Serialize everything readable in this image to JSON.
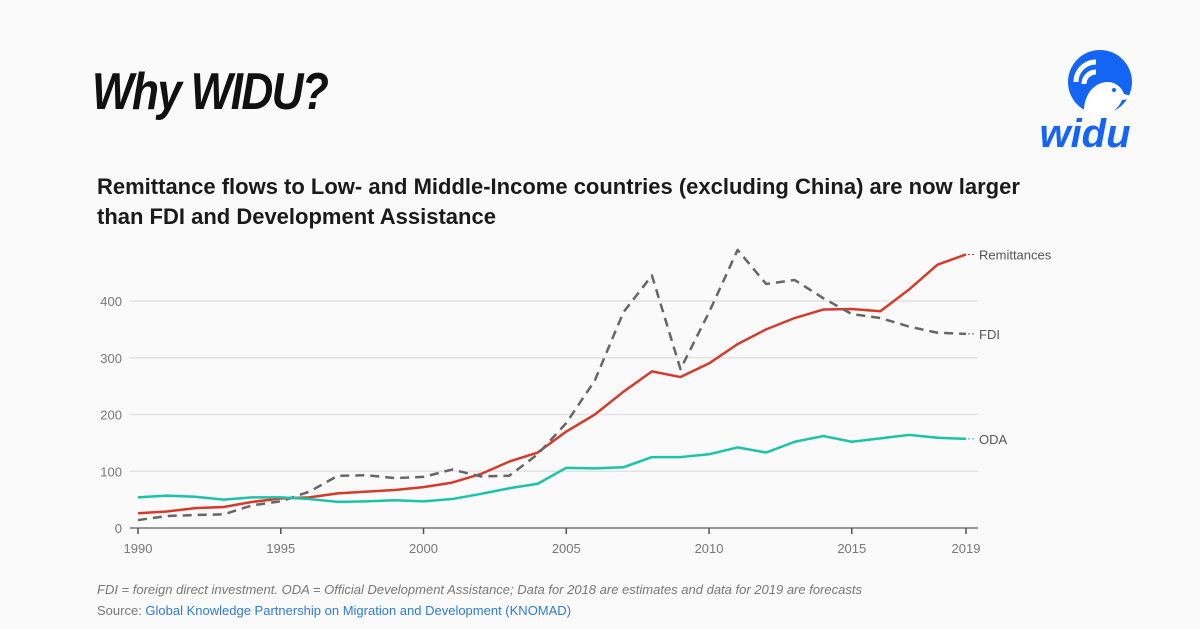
{
  "slide": {
    "title": "Why WIDU?",
    "logo_text": "widu"
  },
  "chart_data": {
    "type": "line",
    "title": "Remittance flows to Low- and Middle-Income countries (excluding China) are now larger than FDI and Development Assistance",
    "xlabel": "",
    "ylabel": "",
    "x": [
      1990,
      1991,
      1992,
      1993,
      1994,
      1995,
      1996,
      1997,
      1998,
      1999,
      2000,
      2001,
      2002,
      2003,
      2004,
      2005,
      2006,
      2007,
      2008,
      2009,
      2010,
      2011,
      2012,
      2013,
      2014,
      2015,
      2016,
      2017,
      2018,
      2019
    ],
    "xticks": [
      "1990",
      "1995",
      "2000",
      "2005",
      "2010",
      "2015",
      "2019"
    ],
    "yticks": [
      "0",
      "100",
      "200",
      "300",
      "400"
    ],
    "ylim": [
      0,
      480
    ],
    "grid": true,
    "series": [
      {
        "name": "Remittances",
        "color": "#d63a2a",
        "dashed": false,
        "values": [
          26,
          29,
          35,
          37,
          46,
          52,
          54,
          61,
          64,
          67,
          72,
          80,
          95,
          117,
          133,
          170,
          200,
          240,
          276,
          266,
          290,
          324,
          350,
          370,
          385,
          386,
          382,
          420,
          464,
          482
        ]
      },
      {
        "name": "FDI",
        "color": "#666666",
        "dashed": true,
        "values": [
          14,
          21,
          23,
          24,
          40,
          47,
          64,
          92,
          93,
          88,
          90,
          103,
          91,
          92,
          130,
          185,
          260,
          380,
          445,
          280,
          380,
          490,
          430,
          437,
          405,
          377,
          370,
          355,
          344,
          342
        ]
      },
      {
        "name": "ODA",
        "color": "#19c4a8",
        "dashed": false,
        "values": [
          54,
          57,
          55,
          50,
          54,
          54,
          51,
          46,
          47,
          49,
          47,
          51,
          60,
          70,
          78,
          106,
          105,
          107,
          125,
          125,
          130,
          142,
          133,
          152,
          162,
          152,
          158,
          164,
          159,
          157
        ]
      }
    ]
  },
  "footer": {
    "note": "FDI = foreign direct investment. ODA = Official Development Assistance; Data for 2018 are estimates and data for 2019 are forecasts",
    "source_label": "Source: ",
    "source_link": "Global Knowledge Partnership on Migration and Development (KNOMAD)"
  }
}
